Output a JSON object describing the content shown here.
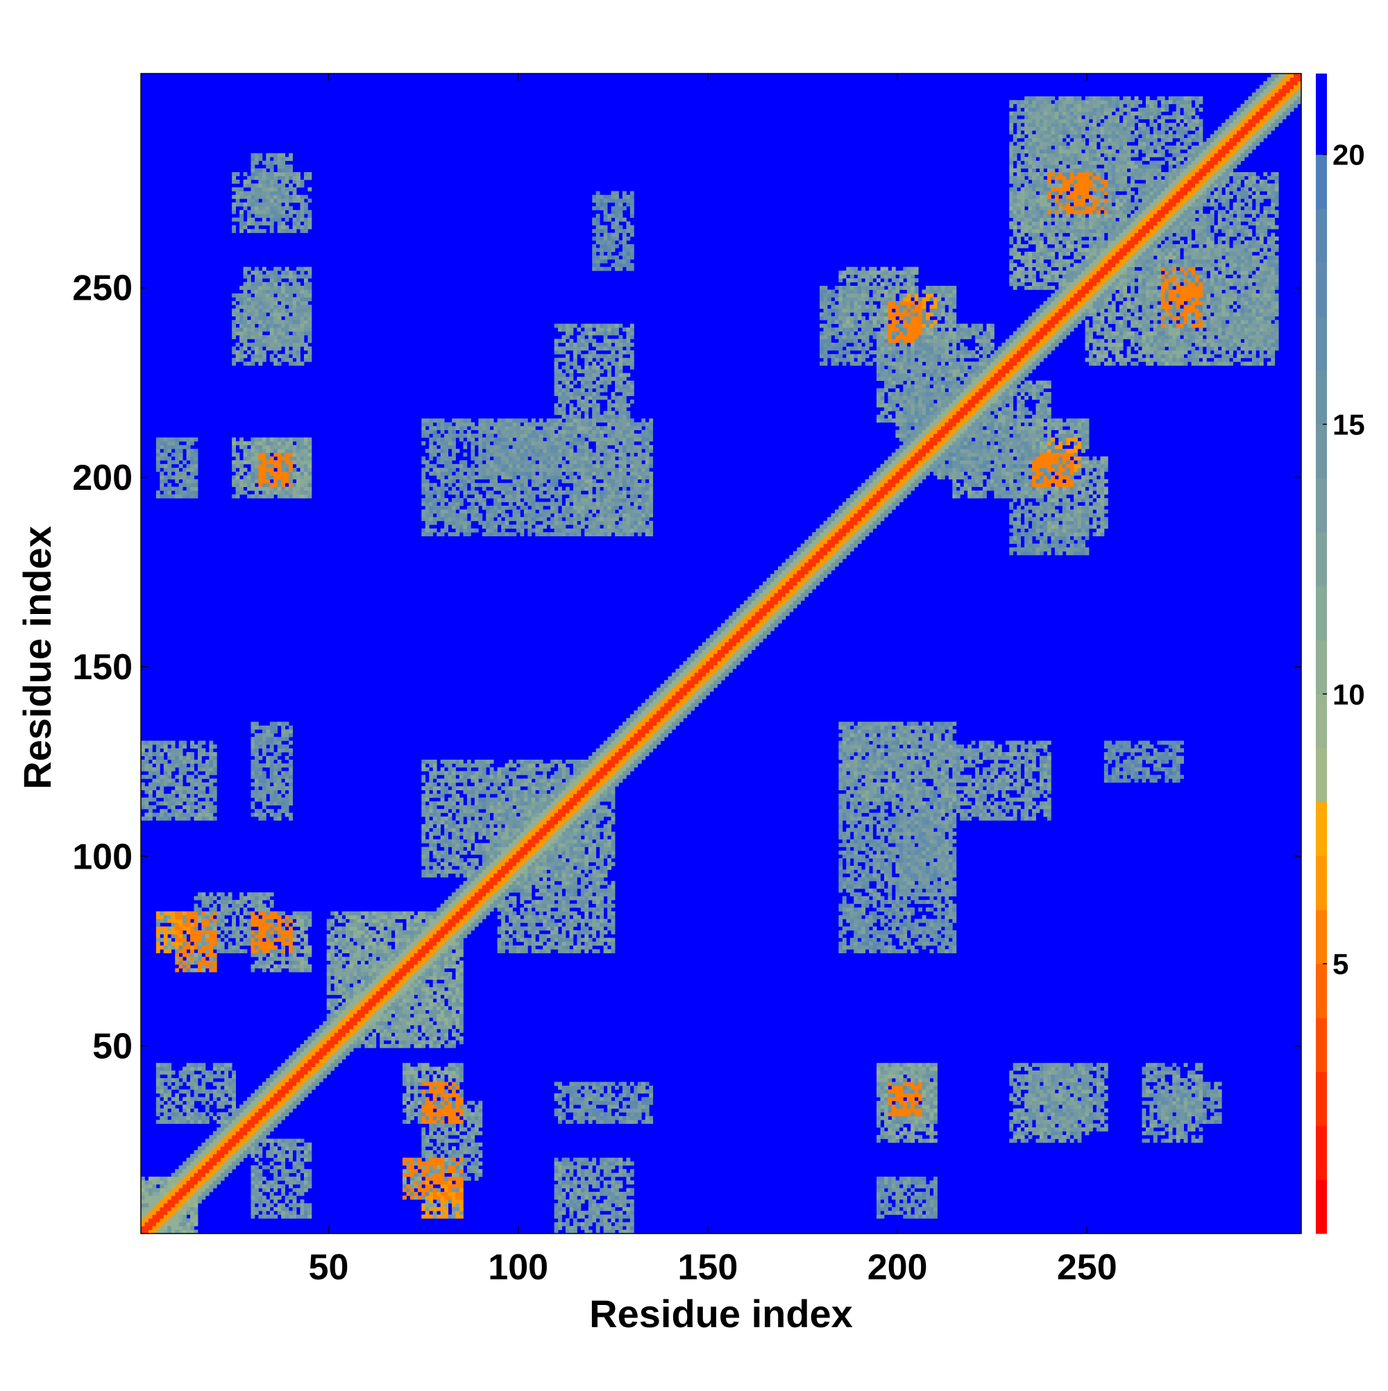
{
  "chart_data": {
    "type": "heatmap",
    "title": "",
    "xlabel": "Residue index",
    "ylabel": "Residue index",
    "n_residues": 306,
    "xlim": [
      1,
      306
    ],
    "ylim": [
      1,
      306
    ],
    "x_ticks": [
      50,
      100,
      150,
      200,
      250
    ],
    "y_ticks": [
      50,
      100,
      150,
      200,
      250
    ],
    "x_tick_labels": [
      "50",
      "100",
      "150",
      "200",
      "250"
    ],
    "y_tick_labels": [
      "50",
      "100",
      "150",
      "200",
      "250"
    ],
    "grid": false,
    "colorbar": {
      "range": [
        0,
        21.5
      ],
      "ticks": [
        5,
        10,
        15,
        20
      ],
      "tick_labels": [
        "5",
        "10",
        "15",
        "20"
      ],
      "placement": "right",
      "levels": [
        {
          "min": 0,
          "max": 1,
          "color": "#ff0000"
        },
        {
          "min": 1,
          "max": 2,
          "color": "#ff1a00"
        },
        {
          "min": 2,
          "max": 3,
          "color": "#ff3300"
        },
        {
          "min": 3,
          "max": 4,
          "color": "#ff4d00"
        },
        {
          "min": 4,
          "max": 5,
          "color": "#ff6600"
        },
        {
          "min": 5,
          "max": 6,
          "color": "#ff7f00"
        },
        {
          "min": 6,
          "max": 7,
          "color": "#ff9900"
        },
        {
          "min": 7,
          "max": 8,
          "color": "#ffaa00"
        },
        {
          "min": 8,
          "max": 9,
          "color": "#a3b98a"
        },
        {
          "min": 9,
          "max": 10,
          "color": "#9ab58f"
        },
        {
          "min": 10,
          "max": 11,
          "color": "#91b094"
        },
        {
          "min": 11,
          "max": 12,
          "color": "#88aa98"
        },
        {
          "min": 12,
          "max": 13,
          "color": "#7fa39c"
        },
        {
          "min": 13,
          "max": 14,
          "color": "#789ca0"
        },
        {
          "min": 14,
          "max": 15,
          "color": "#7097a3"
        },
        {
          "min": 15,
          "max": 16,
          "color": "#6a93a6"
        },
        {
          "min": 16,
          "max": 17,
          "color": "#648ea9"
        },
        {
          "min": 17,
          "max": 18,
          "color": "#5f8aad"
        },
        {
          "min": 18,
          "max": 19,
          "color": "#5a86b0"
        },
        {
          "min": 19,
          "max": 20,
          "color": "#4f7fba"
        },
        {
          "min": 20,
          "max": 21.5,
          "color": "#0000ff"
        }
      ]
    },
    "background_value": 21,
    "diagonal_bands": [
      {
        "offset_min": 0,
        "offset_max": 1,
        "value": 2
      },
      {
        "offset_min": 2,
        "offset_max": 3,
        "value": 6
      },
      {
        "offset_min": 4,
        "offset_max": 5,
        "value": 10
      },
      {
        "offset_min": 6,
        "offset_max": 7,
        "value": 14
      }
    ],
    "contact_regions": [
      {
        "i": [
          1,
          15
        ],
        "j": [
          1,
          15
        ],
        "value": 12
      },
      {
        "i": [
          5,
          25
        ],
        "j": [
          30,
          45
        ],
        "value": 14
      },
      {
        "i": [
          10,
          20
        ],
        "j": [
          70,
          85
        ],
        "value": 13
      },
      {
        "i": [
          15,
          35
        ],
        "j": [
          75,
          90
        ],
        "value": 14
      },
      {
        "i": [
          30,
          45
        ],
        "j": [
          195,
          210
        ],
        "value": 13
      },
      {
        "i": [
          28,
          45
        ],
        "j": [
          235,
          255
        ],
        "value": 14
      },
      {
        "i": [
          30,
          40
        ],
        "j": [
          270,
          285
        ],
        "value": 15
      },
      {
        "i": [
          1,
          20
        ],
        "j": [
          110,
          130
        ],
        "value": 14
      },
      {
        "i": [
          30,
          40
        ],
        "j": [
          110,
          135
        ],
        "value": 15
      },
      {
        "i": [
          55,
          85
        ],
        "j": [
          50,
          85
        ],
        "value": 13
      },
      {
        "i": [
          75,
          85
        ],
        "j": [
          5,
          20
        ],
        "value": 12
      },
      {
        "i": [
          70,
          85
        ],
        "j": [
          30,
          45
        ],
        "value": 13
      },
      {
        "i": [
          95,
          125
        ],
        "j": [
          75,
          120
        ],
        "value": 14
      },
      {
        "i": [
          90,
          130
        ],
        "j": [
          200,
          215
        ],
        "value": 15
      },
      {
        "i": [
          110,
          130
        ],
        "j": [
          205,
          240
        ],
        "value": 14
      },
      {
        "i": [
          115,
          135
        ],
        "j": [
          185,
          205
        ],
        "value": 14
      },
      {
        "i": [
          120,
          130
        ],
        "j": [
          255,
          275
        ],
        "value": 16
      },
      {
        "i": [
          185,
          215
        ],
        "j": [
          75,
          135
        ],
        "value": 15
      },
      {
        "i": [
          195,
          210
        ],
        "j": [
          25,
          45
        ],
        "value": 13
      },
      {
        "i": [
          200,
          215
        ],
        "j": [
          90,
          105
        ],
        "value": 15
      },
      {
        "i": [
          195,
          210
        ],
        "j": [
          5,
          15
        ],
        "value": 15
      },
      {
        "i": [
          180,
          200
        ],
        "j": [
          230,
          250
        ],
        "value": 15
      },
      {
        "i": [
          230,
          250
        ],
        "j": [
          25,
          45
        ],
        "value": 14
      },
      {
        "i": [
          265,
          280
        ],
        "j": [
          25,
          45
        ],
        "value": 14
      },
      {
        "i": [
          195,
          215
        ],
        "j": [
          235,
          250
        ],
        "value": 13
      },
      {
        "i": [
          215,
          240
        ],
        "j": [
          195,
          225
        ],
        "value": 14
      },
      {
        "i": [
          230,
          260
        ],
        "j": [
          250,
          275
        ],
        "value": 13
      },
      {
        "i": [
          235,
          280
        ],
        "j": [
          265,
          300
        ],
        "value": 14
      },
      {
        "i": [
          265,
          300
        ],
        "j": [
          230,
          260
        ],
        "value": 14
      },
      {
        "i": [
          200,
          215
        ],
        "j": [
          210,
          245
        ],
        "value": 15
      },
      {
        "i": [
          240,
          255
        ],
        "j": [
          185,
          205
        ],
        "value": 13
      }
    ],
    "strong_contacts": [
      {
        "i": [
          10,
          20
        ],
        "j": [
          70,
          85
        ],
        "value": 5
      },
      {
        "i": [
          30,
          40
        ],
        "j": [
          75,
          85
        ],
        "value": 5
      },
      {
        "i": [
          32,
          40
        ],
        "j": [
          198,
          206
        ],
        "value": 5
      },
      {
        "i": [
          75,
          85
        ],
        "j": [
          5,
          15
        ],
        "value": 6
      },
      {
        "i": [
          75,
          85
        ],
        "j": [
          30,
          40
        ],
        "value": 5
      },
      {
        "i": [
          198,
          206
        ],
        "j": [
          32,
          40
        ],
        "value": 5
      },
      {
        "i": [
          198,
          206
        ],
        "j": [
          236,
          246
        ],
        "value": 5
      },
      {
        "i": [
          236,
          246
        ],
        "j": [
          198,
          206
        ],
        "value": 5
      },
      {
        "i": [
          240,
          248
        ],
        "j": [
          200,
          210
        ],
        "value": 6
      },
      {
        "i": [
          245,
          255
        ],
        "j": [
          270,
          280
        ],
        "value": 5
      },
      {
        "i": [
          270,
          280
        ],
        "j": [
          240,
          250
        ],
        "value": 5
      }
    ]
  }
}
